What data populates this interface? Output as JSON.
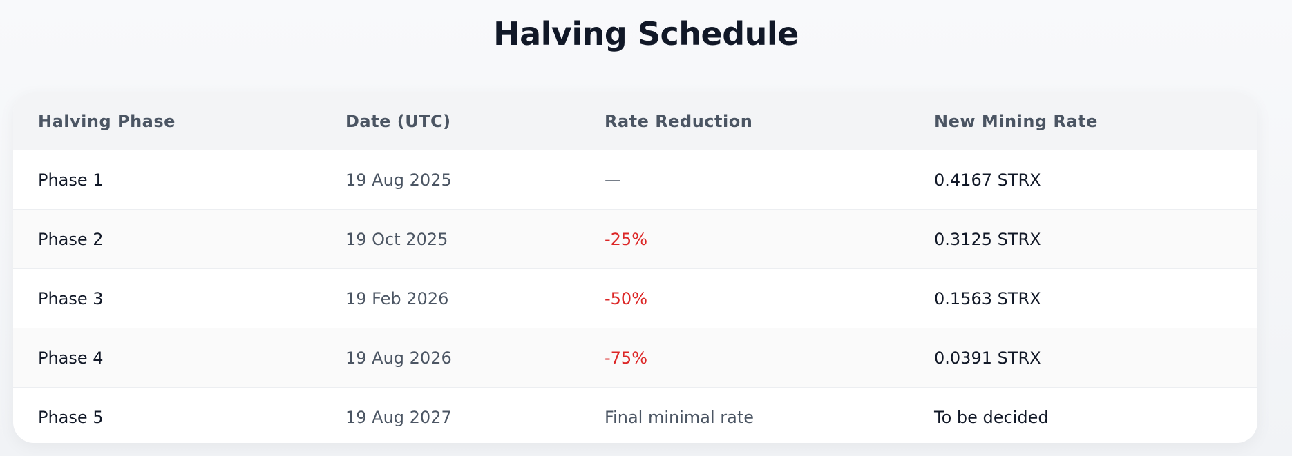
{
  "header": {
    "title": "Halving Schedule"
  },
  "table": {
    "headers": [
      "Halving Phase",
      "Date (UTC)",
      "Rate Reduction",
      "New Mining Rate"
    ],
    "rows": [
      [
        "Phase 1",
        "19 Aug 2025",
        "—",
        "0.4167 STRX"
      ],
      [
        "Phase 2",
        "19 Oct 2025",
        "-25%",
        "0.3125 STRX"
      ],
      [
        "Phase 3",
        "19 Feb 2026",
        "-50%",
        "0.1563 STRX"
      ],
      [
        "Phase 4",
        "19 Aug 2026",
        "-75%",
        "0.0391 STRX"
      ],
      [
        "Phase 5",
        "19 Aug 2027",
        "Final minimal rate",
        "To be decided"
      ]
    ]
  }
}
